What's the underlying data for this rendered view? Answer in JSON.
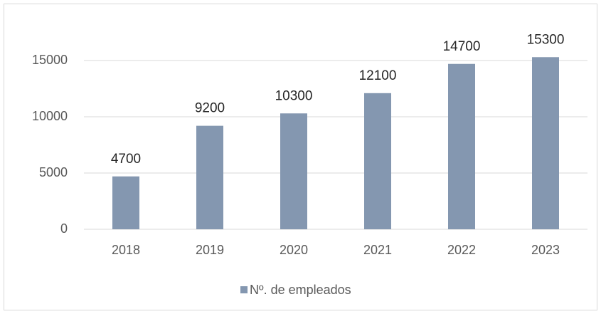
{
  "chart_data": {
    "type": "bar",
    "categories": [
      "2018",
      "2019",
      "2020",
      "2021",
      "2022",
      "2023"
    ],
    "series": [
      {
        "name": "Nº. de empleados",
        "color": "#8497b0",
        "values": [
          4700,
          9200,
          10300,
          12100,
          14700,
          15300
        ]
      }
    ],
    "ylim": [
      0,
      18000
    ],
    "yticks": [
      0,
      5000,
      10000,
      15000
    ],
    "grid": true,
    "legend": "bottom",
    "data_labels": true
  }
}
